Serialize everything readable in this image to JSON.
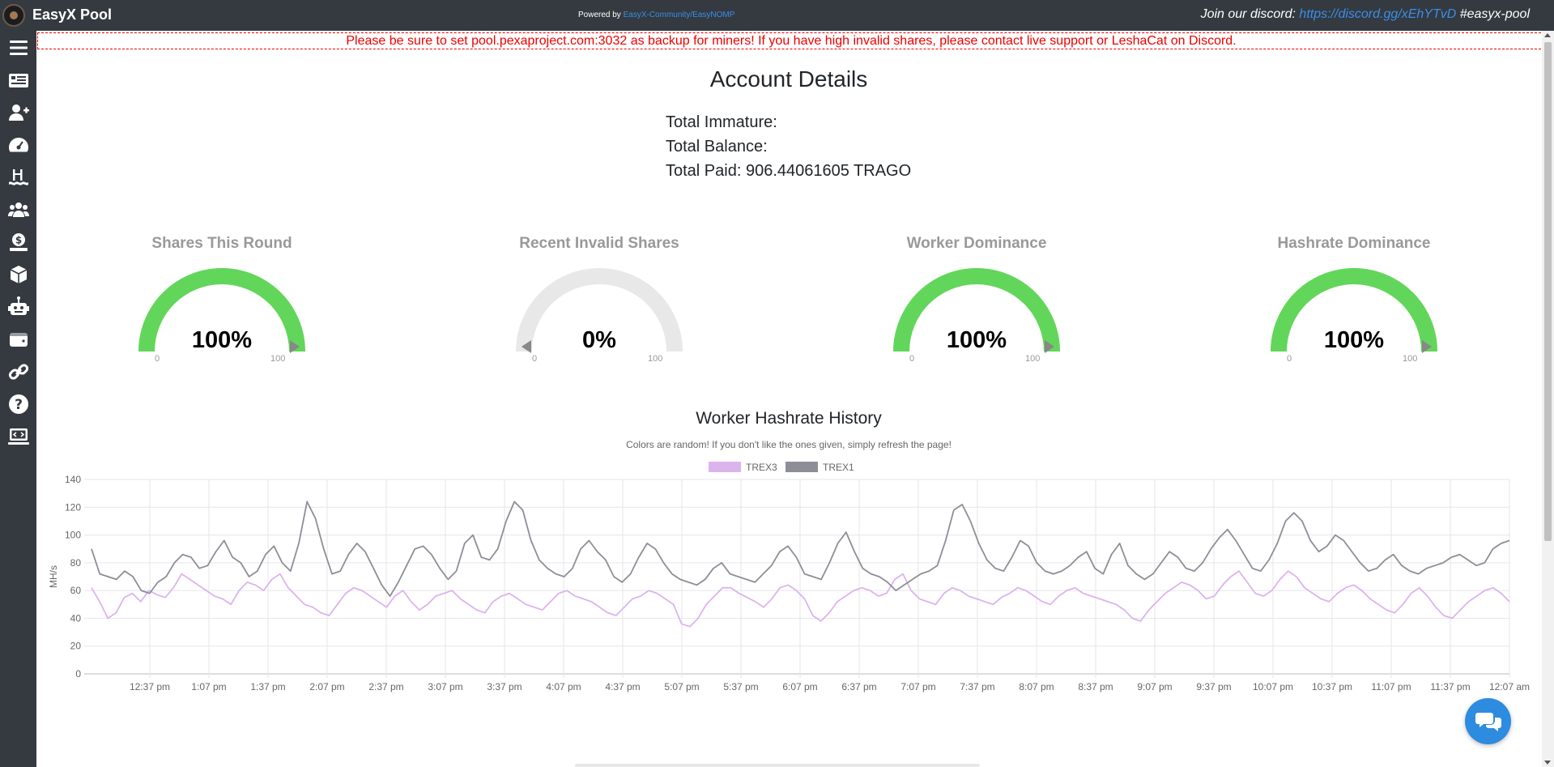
{
  "header": {
    "brand": "EasyX Pool",
    "powered_prefix": "Powered by ",
    "powered_link": "EasyX-Community/EasyNOMP",
    "discord_prefix": "Join our discord: ",
    "discord_link": "https://discord.gg/xEhYTvD",
    "discord_suffix": " #easyx-pool"
  },
  "sidebar": {
    "items": [
      {
        "name": "menu-icon"
      },
      {
        "name": "news-icon"
      },
      {
        "name": "register-user-icon"
      },
      {
        "name": "dashboard-icon"
      },
      {
        "name": "pools-icon"
      },
      {
        "name": "miners-icon"
      },
      {
        "name": "payments-icon"
      },
      {
        "name": "blocks-icon"
      },
      {
        "name": "bot-icon"
      },
      {
        "name": "wallet-icon"
      },
      {
        "name": "links-icon"
      },
      {
        "name": "help-icon"
      },
      {
        "name": "getting-started-icon"
      }
    ]
  },
  "banner": {
    "text": "Please be sure to set pool.pexaproject.com:3032 as backup for miners! If you have high invalid shares, please contact live support or LeshaCat on Discord."
  },
  "account": {
    "title": "Account Details",
    "immature": "Total Immature:",
    "balance": "Total Balance:",
    "paid": "Total Paid: 906.44061605 TRAGO"
  },
  "gauges": [
    {
      "title": "Shares This Round",
      "value": 100,
      "label": "100%",
      "min": "0",
      "max": "100"
    },
    {
      "title": "Recent Invalid Shares",
      "value": 0,
      "label": "0%",
      "min": "0",
      "max": "100"
    },
    {
      "title": "Worker Dominance",
      "value": 100,
      "label": "100%",
      "min": "0",
      "max": "100"
    },
    {
      "title": "Hashrate Dominance",
      "value": 100,
      "label": "100%",
      "min": "0",
      "max": "100"
    }
  ],
  "colors": {
    "gauge_fill": "#62d65a",
    "gauge_empty": "#e8e8e8",
    "trex3": "#dbb4ee",
    "trex1": "#8e8e98",
    "banner_red": "#e00000",
    "link_blue": "#3b8ee8"
  },
  "chart": {
    "title": "Worker Hashrate History",
    "subtitle": "Colors are random! If you don't like the ones given, simply refresh the page!"
  },
  "chart_data": {
    "type": "line",
    "ylabel": "MH/s",
    "ylim": [
      0,
      140
    ],
    "yticks": [
      0,
      20,
      40,
      60,
      80,
      100,
      120,
      140
    ],
    "x_tick_labels": [
      "12:37 pm",
      "1:07 pm",
      "1:37 pm",
      "2:07 pm",
      "2:37 pm",
      "3:07 pm",
      "3:37 pm",
      "4:07 pm",
      "4:37 pm",
      "5:07 pm",
      "5:37 pm",
      "6:07 pm",
      "6:37 pm",
      "7:07 pm",
      "7:37 pm",
      "8:07 pm",
      "8:37 pm",
      "9:07 pm",
      "9:37 pm",
      "10:07 pm",
      "10:37 pm",
      "11:07 pm",
      "11:37 pm",
      "12:07 am"
    ],
    "grid": true,
    "legend": "top-center",
    "series": [
      {
        "name": "TREX3",
        "values": [
          62,
          52,
          40,
          44,
          55,
          58,
          52,
          60,
          57,
          55,
          62,
          72,
          68,
          64,
          60,
          56,
          54,
          50,
          60,
          66,
          64,
          60,
          68,
          72,
          62,
          56,
          50,
          48,
          44,
          42,
          50,
          58,
          62,
          60,
          56,
          52,
          48,
          56,
          60,
          52,
          46,
          50,
          56,
          58,
          60,
          54,
          50,
          46,
          44,
          52,
          56,
          58,
          54,
          50,
          48,
          46,
          52,
          58,
          60,
          56,
          54,
          52,
          48,
          44,
          42,
          48,
          54,
          56,
          60,
          58,
          54,
          50,
          36,
          34,
          40,
          50,
          56,
          62,
          62,
          58,
          55,
          52,
          48,
          54,
          62,
          64,
          60,
          54,
          42,
          38,
          44,
          52,
          56,
          60,
          62,
          60,
          56,
          58,
          68,
          72,
          60,
          54,
          52,
          50,
          58,
          62,
          60,
          56,
          54,
          52,
          50,
          55,
          58,
          62,
          60,
          56,
          52,
          50,
          56,
          60,
          62,
          58,
          56,
          54,
          52,
          50,
          46,
          40,
          38,
          46,
          52,
          58,
          62,
          66,
          64,
          60,
          54,
          56,
          64,
          70,
          74,
          66,
          58,
          56,
          60,
          68,
          74,
          70,
          62,
          58,
          54,
          52,
          58,
          62,
          64,
          60,
          54,
          50,
          46,
          44,
          50,
          58,
          62,
          56,
          48,
          42,
          40,
          46,
          52,
          56,
          60,
          62,
          58,
          52
        ]
      },
      {
        "name": "TREX1",
        "values": [
          90,
          72,
          70,
          68,
          74,
          70,
          60,
          58,
          66,
          70,
          80,
          86,
          84,
          76,
          78,
          88,
          96,
          84,
          80,
          70,
          74,
          86,
          92,
          80,
          74,
          94,
          124,
          112,
          90,
          72,
          74,
          86,
          94,
          88,
          76,
          64,
          56,
          66,
          78,
          90,
          92,
          86,
          76,
          68,
          74,
          94,
          100,
          84,
          82,
          90,
          110,
          124,
          118,
          96,
          82,
          76,
          72,
          70,
          76,
          90,
          96,
          88,
          82,
          70,
          66,
          72,
          84,
          94,
          90,
          80,
          72,
          68,
          66,
          64,
          68,
          76,
          80,
          72,
          70,
          68,
          66,
          72,
          78,
          88,
          92,
          84,
          72,
          70,
          68,
          80,
          94,
          102,
          88,
          76,
          72,
          70,
          66,
          60,
          64,
          68,
          72,
          74,
          78,
          96,
          118,
          122,
          110,
          94,
          82,
          76,
          74,
          84,
          96,
          92,
          80,
          74,
          72,
          74,
          78,
          84,
          88,
          76,
          72,
          86,
          94,
          78,
          72,
          68,
          72,
          80,
          88,
          84,
          76,
          74,
          80,
          90,
          98,
          104,
          96,
          86,
          76,
          74,
          82,
          94,
          110,
          116,
          110,
          96,
          88,
          92,
          100,
          96,
          88,
          80,
          74,
          76,
          82,
          86,
          78,
          74,
          72,
          76,
          78,
          80,
          84,
          86,
          82,
          78,
          80,
          90,
          94,
          96
        ]
      }
    ]
  }
}
